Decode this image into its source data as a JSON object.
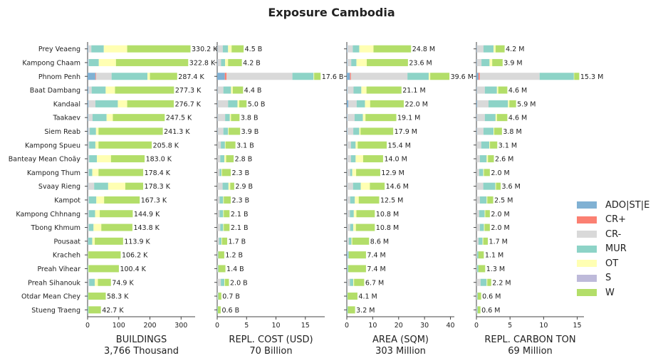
{
  "title": "Exposure Cambodia",
  "colors": {
    "ADO|ST|E": "#80b1d3",
    "CR+": "#fb8072",
    "CR-": "#d9d9d9",
    "MUR": "#8dd3c7",
    "OT": "#ffffb3",
    "S": "#bebada",
    "W": "#b3de69"
  },
  "legend": [
    "ADO|ST|E",
    "CR+",
    "CR-",
    "MUR",
    "OT",
    "S",
    "W"
  ],
  "chart_data": {
    "type": "bar",
    "orientation": "horizontal-stacked",
    "categories": [
      "Prey Veaeng",
      "Kampong Chaam",
      "Phnom Penh",
      "Baat Dambang",
      "Kandaal",
      "Taakaev",
      "Siem Reab",
      "Kampong Spueu",
      "Banteay Mean Choăy",
      "Kampong Thum",
      "Svaay Rieng",
      "Kampot",
      "Kampong Chhnang",
      "Tbong Khmum",
      "Pousaat",
      "Kracheh",
      "Preah Vihear",
      "Preah Sihanouk",
      "Otdar Mean Chey",
      "Stueng Traeng"
    ],
    "panels": [
      {
        "xlabel": "BUILDINGS",
        "total": "3,766 Thousand",
        "xlim": [
          0,
          345
        ],
        "ticks": [
          0,
          100,
          200,
          300
        ],
        "labels": [
          "330.2 K",
          "322.8 K",
          "287.4 K",
          "277.3 K",
          "276.7 K",
          "247.5 K",
          "241.3 K",
          "205.8 K",
          "183.0 K",
          "178.4 K",
          "178.3 K",
          "167.3 K",
          "144.9 K",
          "143.8 K",
          "113.9 K",
          "106.2 K",
          "100.4 K",
          "74.9 K",
          "58.3 K",
          "42.7 K"
        ],
        "series": [
          {
            "name": "ADO|ST|E",
            "values": [
              2,
              2,
              25,
              3,
              3,
              2,
              2,
              1,
              1,
              1,
              1,
              1,
              1,
              1,
              1,
              0,
              0,
              1,
              0,
              0
            ]
          },
          {
            "name": "CR+",
            "values": [
              0,
              0,
              2,
              0,
              0,
              0,
              0,
              0,
              0,
              0,
              0,
              0,
              0,
              0,
              0,
              0,
              0,
              0,
              0,
              0
            ]
          },
          {
            "name": "CR-",
            "values": [
              10,
              2,
              50,
              10,
              22,
              14,
              5,
              4,
              4,
              3,
              20,
              3,
              3,
              3,
              1,
              0,
              0,
              4,
              0,
              0
            ]
          },
          {
            "name": "MUR",
            "values": [
              40,
              32,
              115,
              45,
              72,
              45,
              20,
              20,
              25,
              11,
              45,
              24,
              20,
              15,
              13,
              1,
              2,
              18,
              2,
              3
            ]
          },
          {
            "name": "OT",
            "values": [
              75,
              55,
              8,
              30,
              30,
              20,
              8,
              10,
              45,
              20,
              55,
              25,
              15,
              25,
              8,
              1,
              1,
              10,
              0,
              0
            ]
          },
          {
            "name": "S",
            "values": [
              0,
              0,
              0,
              0,
              0,
              0,
              0,
              0,
              0,
              0,
              0,
              0,
              0,
              0,
              0,
              0,
              0,
              0,
              0,
              0
            ]
          },
          {
            "name": "W",
            "values": [
              203.2,
              231.8,
              87.4,
              189.3,
              149.7,
              166.5,
              206.3,
              170.8,
              108.0,
              143.4,
              57.3,
              114.3,
              105.9,
              99.8,
              90.9,
              104.2,
              97.4,
              41.9,
              56.3,
              39.7
            ]
          }
        ]
      },
      {
        "xlabel": "REPL. COST (USD)",
        "total": "70 Billion",
        "xlim": [
          0,
          18.3
        ],
        "ticks": [
          0,
          5,
          10,
          15
        ],
        "labels": [
          "4.5 B",
          "4.2 B",
          "17.6 B",
          "4.4 B",
          "5.0 B",
          "3.8 B",
          "3.9 B",
          "3.1 B",
          "2.8 B",
          "2.3 B",
          "2.9 B",
          "2.3 B",
          "2.1 B",
          "2.1 B",
          "1.7 B",
          "1.2 B",
          "1.4 B",
          "2.0 B",
          "0.7 B",
          "0.6 B"
        ],
        "series": [
          {
            "name": "ADO|ST|E",
            "values": [
              0.05,
              0.05,
              1.3,
              0.05,
              0.05,
              0.05,
              0.05,
              0.02,
              0.02,
              0.02,
              0.02,
              0.02,
              0.02,
              0.02,
              0.02,
              0,
              0,
              0.02,
              0,
              0
            ]
          },
          {
            "name": "CR+",
            "values": [
              0,
              0,
              0.3,
              0,
              0,
              0,
              0,
              0,
              0,
              0,
              0,
              0,
              0,
              0,
              0,
              0,
              0,
              0,
              0,
              0
            ]
          },
          {
            "name": "CR-",
            "values": [
              0.9,
              0.6,
              11.2,
              1.0,
              1.8,
              1.3,
              1.0,
              0.6,
              0.5,
              0.4,
              0.9,
              0.4,
              0.4,
              0.5,
              0.3,
              0.1,
              0.1,
              0.6,
              0.1,
              0
            ]
          },
          {
            "name": "MUR",
            "values": [
              0.9,
              0.7,
              3.6,
              1.3,
              1.6,
              0.8,
              0.8,
              0.7,
              0.7,
              0.3,
              1.0,
              0.6,
              0.6,
              0.5,
              0.4,
              0.1,
              0.1,
              0.6,
              0.1,
              0.1
            ]
          },
          {
            "name": "OT",
            "values": [
              0.6,
              0.5,
              0.1,
              0.3,
              0.3,
              0.2,
              0.1,
              0.1,
              0.3,
              0.1,
              0.3,
              0.1,
              0.1,
              0.1,
              0.1,
              0,
              0,
              0.1,
              0,
              0
            ]
          },
          {
            "name": "S",
            "values": [
              0,
              0,
              0,
              0,
              0,
              0,
              0,
              0,
              0,
              0,
              0,
              0,
              0,
              0,
              0,
              0,
              0,
              0,
              0,
              0
            ]
          },
          {
            "name": "W",
            "values": [
              2.05,
              2.35,
              1.1,
              1.75,
              1.25,
              1.45,
              1.95,
              1.68,
              1.28,
              1.48,
              0.68,
              1.18,
              0.98,
              0.98,
              0.88,
              1.0,
              1.2,
              0.68,
              0.5,
              0.5
            ]
          }
        ]
      },
      {
        "xlabel": "AREA (SQM)",
        "total": "303 Million",
        "xlim": [
          0,
          41.5
        ],
        "ticks": [
          0,
          10,
          20,
          30,
          40
        ],
        "labels": [
          "24.8 M",
          "23.6 M",
          "39.6 M",
          "21.1 M",
          "22.0 M",
          "19.1 M",
          "17.9 M",
          "15.4 M",
          "14.0 M",
          "12.9 M",
          "14.6 M",
          "12.5 M",
          "10.8 M",
          "10.8 M",
          "8.6 M",
          "7.4 M",
          "7.4 M",
          "6.7 M",
          "4.1 M",
          "3.2 M"
        ],
        "series": [
          {
            "name": "ADO|ST|E",
            "values": [
              0.2,
              0.2,
              1.2,
              0.2,
              0.6,
              0.2,
              0.2,
              0.1,
              0.1,
              0.1,
              0.1,
              0.1,
              0.1,
              0.1,
              0.1,
              0.3,
              0.1,
              0.1,
              0,
              0
            ]
          },
          {
            "name": "CR+",
            "values": [
              0,
              0,
              0.4,
              0,
              0,
              0,
              0,
              0,
              0,
              0,
              0,
              0,
              0,
              0,
              0,
              0,
              0,
              0,
              0,
              0
            ]
          },
          {
            "name": "CR-",
            "values": [
              2.1,
              1.5,
              21.8,
              2.4,
              3.2,
              2.8,
              2.3,
              1.5,
              1.5,
              1.2,
              2.3,
              1.2,
              1.1,
              1.2,
              0.7,
              0.2,
              0.2,
              1.1,
              0.1,
              0.1
            ]
          },
          {
            "name": "MUR",
            "values": [
              2.5,
              2.0,
              8.2,
              3.0,
              3.2,
              3.2,
              2.3,
              1.8,
              1.8,
              0.8,
              3.0,
              1.8,
              1.5,
              1.2,
              1.0,
              0.3,
              0.3,
              1.3,
              0.2,
              0.3
            ]
          },
          {
            "name": "OT",
            "values": [
              5.5,
              4.0,
              0.6,
              2.0,
              2.0,
              1.0,
              0.5,
              0.8,
              2.9,
              1.5,
              3.5,
              1.5,
              1.0,
              1.0,
              0.3,
              0,
              0,
              0.3,
              0,
              0
            ]
          },
          {
            "name": "S",
            "values": [
              0,
              0,
              0,
              0,
              0,
              0,
              0,
              0,
              0,
              0,
              0,
              0,
              0,
              0,
              0,
              0,
              0,
              0,
              0,
              0
            ]
          },
          {
            "name": "W",
            "values": [
              14.5,
              15.9,
              7.4,
              13.5,
              13.0,
              11.9,
              12.6,
              11.2,
              7.7,
              9.3,
              5.7,
              7.9,
              7.1,
              7.3,
              6.5,
              6.6,
              6.8,
              3.9,
              3.8,
              2.8
            ]
          }
        ]
      },
      {
        "xlabel": "REPL. CARBON TON",
        "total": "69 Million",
        "xlim": [
          0,
          16
        ],
        "ticks": [
          0,
          5,
          10,
          15
        ],
        "labels": [
          "4.2 M",
          "3.9 M",
          "15.3 M",
          "4.6 M",
          "5.9 M",
          "4.6 M",
          "3.8 M",
          "3.1 M",
          "2.6 M",
          "2.0 M",
          "3.6 M",
          "2.5 M",
          "2.0 M",
          "2.0 M",
          "1.7 M",
          "1.1 M",
          "1.3 M",
          "2.2 M",
          "0.6 M",
          "0.6 M"
        ],
        "series": [
          {
            "name": "ADO|ST|E",
            "values": [
              0.05,
              0.05,
              0.3,
              0.05,
              0.1,
              0.05,
              0.05,
              0.02,
              0.02,
              0.02,
              0.02,
              0.02,
              0.02,
              0.02,
              0.02,
              0,
              0,
              0.02,
              0,
              0
            ]
          },
          {
            "name": "CR+",
            "values": [
              0,
              0,
              0.2,
              0,
              0,
              0,
              0,
              0,
              0,
              0,
              0,
              0,
              0,
              0,
              0,
              0,
              0,
              0,
              0,
              0
            ]
          },
          {
            "name": "CR-",
            "values": [
              1.0,
              0.7,
              8.9,
              1.2,
              1.7,
              1.2,
              1.0,
              0.7,
              0.5,
              0.4,
              1.0,
              0.5,
              0.4,
              0.5,
              0.3,
              0.1,
              0.1,
              0.6,
              0.1,
              0.1
            ]
          },
          {
            "name": "MUR",
            "values": [
              1.5,
              1.2,
              5.1,
              1.8,
              2.9,
              1.6,
              1.5,
              1.2,
              1.0,
              0.6,
              1.8,
              1.0,
              0.8,
              0.6,
              0.6,
              0.2,
              0.2,
              0.9,
              0.1,
              0.1
            ]
          },
          {
            "name": "OT",
            "values": [
              0.3,
              0.4,
              0.05,
              0.2,
              0.2,
              0.2,
              0.1,
              0.1,
              0.2,
              0.1,
              0.1,
              0.1,
              0.1,
              0.1,
              0.1,
              0,
              0,
              0.1,
              0,
              0
            ]
          },
          {
            "name": "S",
            "values": [
              0,
              0,
              0,
              0,
              0,
              0,
              0,
              0,
              0,
              0,
              0,
              0,
              0,
              0,
              0,
              0,
              0,
              0,
              0,
              0
            ]
          },
          {
            "name": "W",
            "values": [
              1.35,
              1.55,
              0.75,
              1.35,
              1.0,
              1.55,
              1.15,
              1.08,
              0.88,
              0.88,
              0.68,
              0.88,
              0.68,
              0.78,
              0.68,
              0.8,
              1.0,
              0.58,
              0.5,
              0.4
            ]
          }
        ]
      }
    ]
  }
}
